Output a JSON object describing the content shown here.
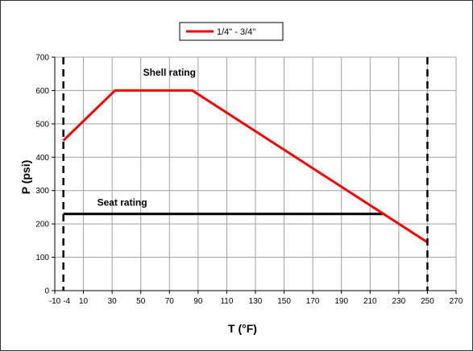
{
  "chart_data": {
    "type": "line",
    "title": "",
    "xlabel": "T (°F)",
    "ylabel": "P (psi)",
    "xlim": [
      -10,
      270
    ],
    "ylim": [
      0,
      700
    ],
    "x_ticks": [
      -10,
      10,
      30,
      50,
      70,
      90,
      110,
      130,
      150,
      170,
      190,
      210,
      230,
      250,
      270
    ],
    "y_ticks": [
      0,
      100,
      200,
      300,
      400,
      500,
      600,
      700
    ],
    "extra_x_tick": -4,
    "grid": true,
    "legend_position": "top-center",
    "series": [
      {
        "name": "1/4\" - 3/4\"",
        "color": "#ff0000",
        "x": [
          -4,
          32,
          86,
          250
        ],
        "y": [
          450,
          600,
          600,
          145
        ]
      }
    ],
    "reference_lines": [
      {
        "label": "Seat rating",
        "color": "#000000",
        "x": [
          -4,
          220
        ],
        "y": [
          230,
          230
        ]
      }
    ],
    "limit_lines": [
      {
        "x": -4,
        "style": "dashed",
        "color": "#000000"
      },
      {
        "x": 250,
        "style": "dashed",
        "color": "#000000"
      }
    ],
    "annotations": [
      {
        "text": "Shell rating",
        "x": 70,
        "y": 645
      },
      {
        "text": "Seat rating",
        "x": 37,
        "y": 255
      }
    ]
  }
}
